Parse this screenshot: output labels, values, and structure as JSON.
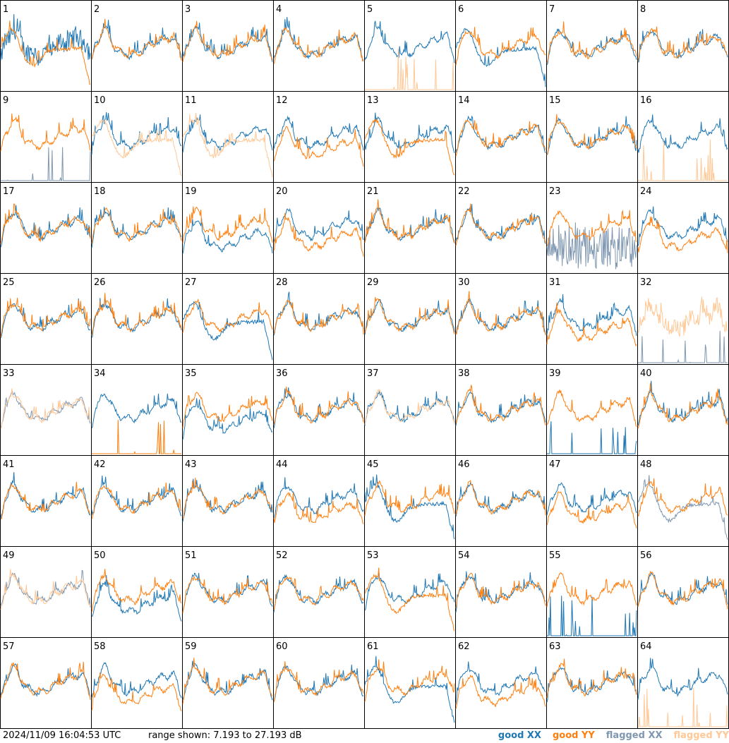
{
  "footer": {
    "timestamp": "2024/11/09 16:04:53 UTC",
    "range": "range shown: 7.193 to 27.193 dB"
  },
  "legend": {
    "good_xx": "good XX",
    "good_yy": "good YY",
    "flagged_xx": "flagged XX",
    "flagged_yy": "flagged YY"
  },
  "colors": {
    "good_xx": "#1f77b4",
    "good_yy": "#ff7f0e",
    "flagged_xx": "#7f97b0",
    "flagged_yy": "#ffc896"
  },
  "chart_data": {
    "type": "line",
    "layout": "8x8 grid of small multiples",
    "x_axis": "frequency (unlabeled)",
    "y_axis_range_db": [
      7.193,
      27.193
    ],
    "grid": false,
    "legend_placement": "bottom-right",
    "panels": [
      {
        "id": "1",
        "xx": "good",
        "yy": "good",
        "xx_shape": "ripple",
        "yy_shape": "droop"
      },
      {
        "id": "2",
        "xx": "good",
        "yy": "good",
        "xx_shape": "normal",
        "yy_shape": "normal"
      },
      {
        "id": "3",
        "xx": "good",
        "yy": "good",
        "xx_shape": "normal",
        "yy_shape": "normal"
      },
      {
        "id": "4",
        "xx": "good",
        "yy": "good",
        "xx_shape": "normal",
        "yy_shape": "normal"
      },
      {
        "id": "5",
        "xx": "good",
        "yy": "flagged",
        "xx_shape": "normal",
        "yy_shape": "spikes"
      },
      {
        "id": "6",
        "xx": "good",
        "yy": "good",
        "xx_shape": "droop",
        "yy_shape": "normal"
      },
      {
        "id": "7",
        "xx": "good",
        "yy": "good",
        "xx_shape": "normal",
        "yy_shape": "normal"
      },
      {
        "id": "8",
        "xx": "good",
        "yy": "good",
        "xx_shape": "normal",
        "yy_shape": "normal"
      },
      {
        "id": "9",
        "xx": "flagged",
        "yy": "good",
        "xx_shape": "spikes",
        "yy_shape": "normal"
      },
      {
        "id": "10",
        "xx": "good",
        "yy": "flagged",
        "xx_shape": "normal",
        "yy_shape": "droop"
      },
      {
        "id": "11",
        "xx": "good",
        "yy": "flagged",
        "xx_shape": "normal",
        "yy_shape": "droop"
      },
      {
        "id": "12",
        "xx": "good",
        "yy": "good",
        "xx_shape": "normal",
        "yy_shape": "low"
      },
      {
        "id": "13",
        "xx": "good",
        "yy": "good",
        "xx_shape": "normal",
        "yy_shape": "droop"
      },
      {
        "id": "14",
        "xx": "good",
        "yy": "good",
        "xx_shape": "normal",
        "yy_shape": "normal"
      },
      {
        "id": "15",
        "xx": "good",
        "yy": "good",
        "xx_shape": "normal",
        "yy_shape": "normal"
      },
      {
        "id": "16",
        "xx": "good",
        "yy": "flagged",
        "xx_shape": "normal",
        "yy_shape": "spikes"
      },
      {
        "id": "17",
        "xx": "good",
        "yy": "good",
        "xx_shape": "normal",
        "yy_shape": "normal"
      },
      {
        "id": "18",
        "xx": "good",
        "yy": "good",
        "xx_shape": "normal",
        "yy_shape": "normal"
      },
      {
        "id": "19",
        "xx": "good",
        "yy": "good",
        "xx_shape": "low",
        "yy_shape": "normal"
      },
      {
        "id": "20",
        "xx": "good",
        "yy": "good",
        "xx_shape": "normal",
        "yy_shape": "low"
      },
      {
        "id": "21",
        "xx": "good",
        "yy": "good",
        "xx_shape": "normal",
        "yy_shape": "normal"
      },
      {
        "id": "22",
        "xx": "good",
        "yy": "good",
        "xx_shape": "normal",
        "yy_shape": "normal"
      },
      {
        "id": "23",
        "xx": "flagged",
        "yy": "good",
        "xx_shape": "noise",
        "yy_shape": "normal"
      },
      {
        "id": "24",
        "xx": "good",
        "yy": "good",
        "xx_shape": "normal",
        "yy_shape": "low"
      },
      {
        "id": "25",
        "xx": "good",
        "yy": "good",
        "xx_shape": "normal",
        "yy_shape": "normal"
      },
      {
        "id": "26",
        "xx": "good",
        "yy": "good",
        "xx_shape": "normal",
        "yy_shape": "normal"
      },
      {
        "id": "27",
        "xx": "good",
        "yy": "good",
        "xx_shape": "droop",
        "yy_shape": "normal"
      },
      {
        "id": "28",
        "xx": "good",
        "yy": "good",
        "xx_shape": "normal",
        "yy_shape": "normal"
      },
      {
        "id": "29",
        "xx": "good",
        "yy": "good",
        "xx_shape": "normal",
        "yy_shape": "normal"
      },
      {
        "id": "30",
        "xx": "good",
        "yy": "good",
        "xx_shape": "normal",
        "yy_shape": "normal"
      },
      {
        "id": "31",
        "xx": "good",
        "yy": "good",
        "xx_shape": "normal",
        "yy_shape": "low"
      },
      {
        "id": "32",
        "xx": "flagged",
        "yy": "flagged",
        "xx_shape": "spikes",
        "yy_shape": "ripple"
      },
      {
        "id": "33",
        "xx": "flagged",
        "yy": "flagged",
        "xx_shape": "normal",
        "yy_shape": "normal"
      },
      {
        "id": "34",
        "xx": "good",
        "yy": "good",
        "xx_shape": "normal",
        "yy_shape": "spikes"
      },
      {
        "id": "35",
        "xx": "good",
        "yy": "good",
        "xx_shape": "low",
        "yy_shape": "normal"
      },
      {
        "id": "36",
        "xx": "good",
        "yy": "good",
        "xx_shape": "normal",
        "yy_shape": "normal"
      },
      {
        "id": "37",
        "xx": "good",
        "yy": "flagged",
        "xx_shape": "normal",
        "yy_shape": "normal"
      },
      {
        "id": "38",
        "xx": "good",
        "yy": "good",
        "xx_shape": "normal",
        "yy_shape": "normal"
      },
      {
        "id": "39",
        "xx": "good",
        "yy": "good",
        "xx_shape": "spikes",
        "yy_shape": "normal"
      },
      {
        "id": "40",
        "xx": "good",
        "yy": "good",
        "xx_shape": "normal",
        "yy_shape": "normal"
      },
      {
        "id": "41",
        "xx": "good",
        "yy": "good",
        "xx_shape": "normal",
        "yy_shape": "normal"
      },
      {
        "id": "42",
        "xx": "good",
        "yy": "good",
        "xx_shape": "normal",
        "yy_shape": "normal"
      },
      {
        "id": "43",
        "xx": "good",
        "yy": "good",
        "xx_shape": "normal",
        "yy_shape": "normal"
      },
      {
        "id": "44",
        "xx": "good",
        "yy": "good",
        "xx_shape": "normal",
        "yy_shape": "low"
      },
      {
        "id": "45",
        "xx": "good",
        "yy": "good",
        "xx_shape": "droop",
        "yy_shape": "normal"
      },
      {
        "id": "46",
        "xx": "good",
        "yy": "good",
        "xx_shape": "normal",
        "yy_shape": "normal"
      },
      {
        "id": "47",
        "xx": "good",
        "yy": "good",
        "xx_shape": "normal",
        "yy_shape": "low"
      },
      {
        "id": "48",
        "xx": "flagged",
        "yy": "good",
        "xx_shape": "droop",
        "yy_shape": "normal"
      },
      {
        "id": "49",
        "xx": "flagged",
        "yy": "flagged",
        "xx_shape": "normal",
        "yy_shape": "normal"
      },
      {
        "id": "50",
        "xx": "good",
        "yy": "good",
        "xx_shape": "low",
        "yy_shape": "normal"
      },
      {
        "id": "51",
        "xx": "good",
        "yy": "good",
        "xx_shape": "normal",
        "yy_shape": "normal"
      },
      {
        "id": "52",
        "xx": "good",
        "yy": "good",
        "xx_shape": "normal",
        "yy_shape": "normal"
      },
      {
        "id": "53",
        "xx": "good",
        "yy": "good",
        "xx_shape": "normal",
        "yy_shape": "droop"
      },
      {
        "id": "54",
        "xx": "good",
        "yy": "good",
        "xx_shape": "normal",
        "yy_shape": "normal"
      },
      {
        "id": "55",
        "xx": "good",
        "yy": "good",
        "xx_shape": "spikes",
        "yy_shape": "normal"
      },
      {
        "id": "56",
        "xx": "good",
        "yy": "good",
        "xx_shape": "normal",
        "yy_shape": "normal"
      },
      {
        "id": "57",
        "xx": "good",
        "yy": "good",
        "xx_shape": "normal",
        "yy_shape": "normal"
      },
      {
        "id": "58",
        "xx": "good",
        "yy": "good",
        "xx_shape": "normal",
        "yy_shape": "low"
      },
      {
        "id": "59",
        "xx": "good",
        "yy": "good",
        "xx_shape": "normal",
        "yy_shape": "normal"
      },
      {
        "id": "60",
        "xx": "good",
        "yy": "good",
        "xx_shape": "normal",
        "yy_shape": "normal"
      },
      {
        "id": "61",
        "xx": "good",
        "yy": "good",
        "xx_shape": "droop",
        "yy_shape": "normal"
      },
      {
        "id": "62",
        "xx": "good",
        "yy": "good",
        "xx_shape": "normal",
        "yy_shape": "low"
      },
      {
        "id": "63",
        "xx": "good",
        "yy": "good",
        "xx_shape": "normal",
        "yy_shape": "normal"
      },
      {
        "id": "64",
        "xx": "good",
        "yy": "flagged",
        "xx_shape": "normal",
        "yy_shape": "spikes"
      }
    ]
  }
}
